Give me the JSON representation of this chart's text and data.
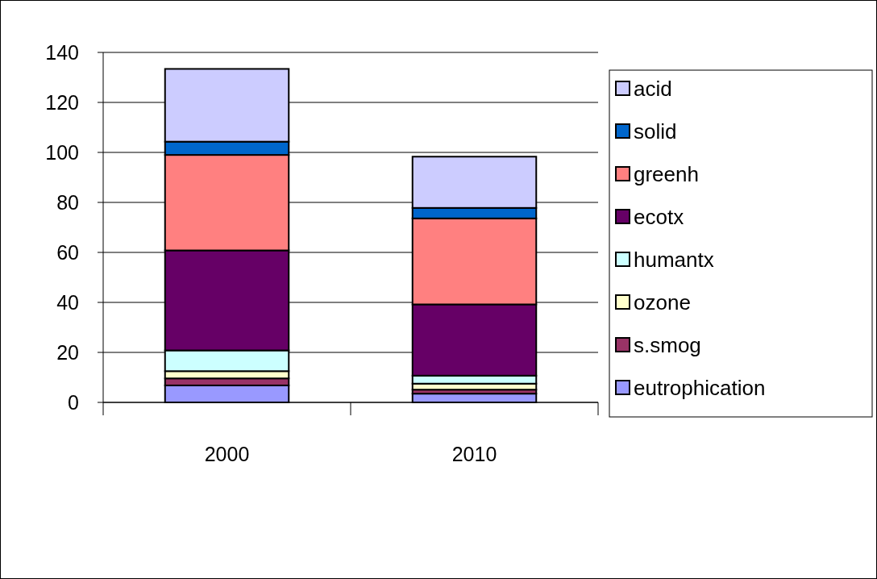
{
  "chart_data": {
    "type": "bar",
    "stacked": true,
    "categories": [
      "2000",
      "2010"
    ],
    "series": [
      {
        "name": "eutrophication",
        "color": "#9999ff",
        "values": [
          6.8,
          3.5
        ]
      },
      {
        "name": "s.smog",
        "color": "#993366",
        "values": [
          2.8,
          1.6
        ]
      },
      {
        "name": "ozone",
        "color": "#ffffcc",
        "values": [
          2.9,
          2.4
        ]
      },
      {
        "name": "humantx",
        "color": "#ccffff",
        "values": [
          8.3,
          3.2
        ]
      },
      {
        "name": "ecotx",
        "color": "#660066",
        "values": [
          40,
          28.5
        ]
      },
      {
        "name": "greenh",
        "color": "#ff8080",
        "values": [
          38.2,
          34.4
        ]
      },
      {
        "name": "solid",
        "color": "#0066cc",
        "values": [
          5.3,
          4.2
        ]
      },
      {
        "name": "acid",
        "color": "#ccccff",
        "values": [
          29.1,
          20.5
        ]
      }
    ],
    "ylim": [
      0,
      140
    ],
    "yticks": [
      0,
      20,
      40,
      60,
      80,
      100,
      120,
      140
    ],
    "grid": "y",
    "legend": "right"
  }
}
